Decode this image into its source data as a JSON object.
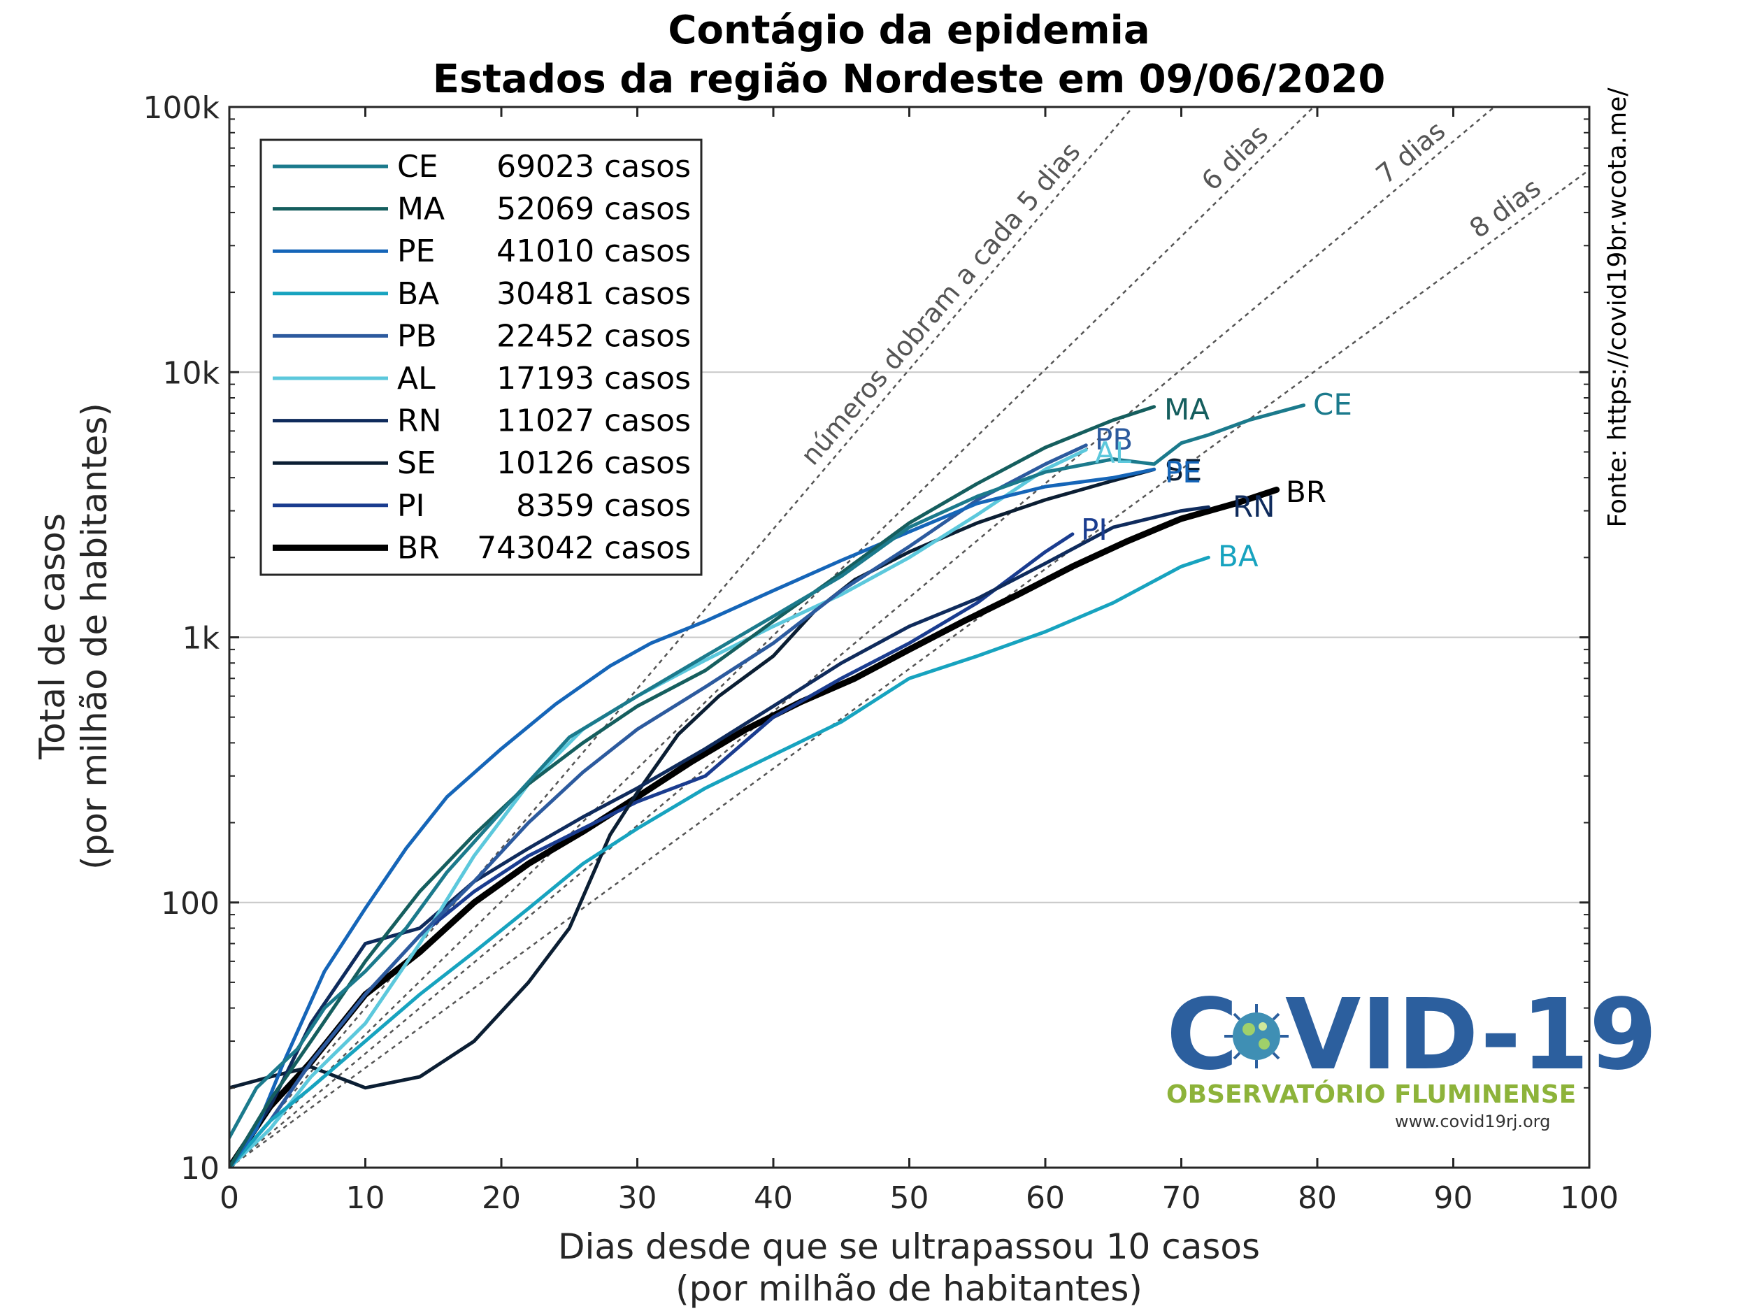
{
  "chart_data": {
    "type": "line",
    "title_line1": "Contágio da epidemia",
    "title_line2": "Estados da região Nordeste em 09/06/2020",
    "xlabel_line1": "Dias desde que se ultrapassou 10 casos",
    "xlabel_line2": "(por milhão de habitantes)",
    "ylabel_line1": "Total de casos",
    "ylabel_line2": "(por milhão de habitantes)",
    "xlim": [
      0,
      100
    ],
    "ylim": [
      10,
      100000
    ],
    "yscale": "log",
    "x_ticks": [
      0,
      10,
      20,
      30,
      40,
      50,
      60,
      70,
      80,
      90,
      100
    ],
    "x_tick_labels": [
      "0",
      "10",
      "20",
      "30",
      "40",
      "50",
      "60",
      "70",
      "80",
      "90",
      "100"
    ],
    "y_ticks": [
      10,
      100,
      1000,
      10000,
      100000
    ],
    "y_tick_labels": [
      "10",
      "100",
      "1k",
      "10k",
      "100k"
    ],
    "grid": "horizontal-major",
    "legend_position": "top-left",
    "source_text": "Fonte: https://covid19br.wcota.me/",
    "doubling_lines": [
      {
        "days": 5,
        "label": "números dobram a cada 5 dias"
      },
      {
        "days": 6,
        "label": "6 dias"
      },
      {
        "days": 7,
        "label": "7 dias"
      },
      {
        "days": 8,
        "label": "8 dias"
      }
    ],
    "series": [
      {
        "name": "CE",
        "cases": "69023 casos",
        "color": "#1b7a8c",
        "x": [
          0,
          2,
          5,
          7,
          10,
          13,
          16,
          20,
          25,
          30,
          35,
          40,
          45,
          50,
          55,
          60,
          65,
          68,
          70,
          72,
          75,
          79
        ],
        "y": [
          13,
          20,
          28,
          40,
          55,
          80,
          130,
          220,
          420,
          600,
          850,
          1200,
          1700,
          2600,
          3400,
          4200,
          4700,
          4500,
          5400,
          5800,
          6600,
          7500
        ]
      },
      {
        "name": "MA",
        "cases": "52069 casos",
        "color": "#155e5e",
        "x": [
          0,
          3,
          6,
          10,
          14,
          18,
          22,
          26,
          30,
          35,
          40,
          45,
          50,
          55,
          60,
          65,
          68
        ],
        "y": [
          10,
          18,
          30,
          60,
          110,
          180,
          280,
          400,
          550,
          750,
          1150,
          1750,
          2700,
          3800,
          5200,
          6600,
          7400
        ]
      },
      {
        "name": "PE",
        "cases": "41010 casos",
        "color": "#1565b8",
        "x": [
          0,
          2,
          4,
          7,
          10,
          13,
          16,
          20,
          24,
          28,
          31,
          35,
          40,
          45,
          50,
          55,
          60,
          65,
          68
        ],
        "y": [
          10,
          14,
          25,
          55,
          95,
          160,
          250,
          380,
          560,
          780,
          950,
          1150,
          1500,
          1950,
          2500,
          3200,
          3700,
          4000,
          4300
        ]
      },
      {
        "name": "BA",
        "cases": "30481 casos",
        "color": "#17a3bf",
        "x": [
          0,
          3,
          6,
          10,
          14,
          18,
          22,
          26,
          30,
          35,
          40,
          45,
          50,
          55,
          60,
          65,
          70,
          72
        ],
        "y": [
          10,
          15,
          20,
          30,
          45,
          65,
          95,
          140,
          190,
          270,
          360,
          480,
          700,
          850,
          1050,
          1350,
          1850,
          2000
        ]
      },
      {
        "name": "PB",
        "cases": "22452 casos",
        "color": "#2c5a9e",
        "x": [
          0,
          3,
          6,
          10,
          14,
          18,
          22,
          26,
          30,
          35,
          40,
          45,
          50,
          55,
          60,
          63
        ],
        "y": [
          10,
          15,
          25,
          45,
          75,
          120,
          200,
          310,
          450,
          650,
          950,
          1500,
          2200,
          3300,
          4500,
          5300
        ]
      },
      {
        "name": "AL",
        "cases": "17193 casos",
        "color": "#5cc8dc",
        "x": [
          0,
          3,
          6,
          10,
          14,
          18,
          22,
          26,
          30,
          35,
          40,
          45,
          50,
          55,
          60,
          63
        ],
        "y": [
          10,
          14,
          22,
          35,
          70,
          150,
          280,
          450,
          600,
          820,
          1100,
          1450,
          2000,
          2900,
          4300,
          5100
        ]
      },
      {
        "name": "RN",
        "cases": "11027 casos",
        "color": "#0f2b5c",
        "x": [
          0,
          3,
          6,
          10,
          14,
          18,
          22,
          26,
          30,
          35,
          40,
          45,
          50,
          55,
          60,
          65,
          70,
          72
        ],
        "y": [
          10,
          17,
          35,
          70,
          80,
          120,
          160,
          210,
          270,
          380,
          550,
          800,
          1100,
          1400,
          1900,
          2600,
          3000,
          3100
        ]
      },
      {
        "name": "SE",
        "cases": "10126 casos",
        "color": "#0b1e33",
        "x": [
          0,
          3,
          6,
          10,
          14,
          18,
          22,
          25,
          28,
          30,
          33,
          36,
          40,
          43,
          46,
          50,
          55,
          60,
          65,
          68
        ],
        "y": [
          20,
          22,
          24,
          20,
          22,
          30,
          50,
          80,
          180,
          260,
          430,
          600,
          850,
          1250,
          1650,
          2100,
          2700,
          3300,
          3900,
          4300
        ]
      },
      {
        "name": "PI",
        "cases": "8359 casos",
        "color": "#1a3c8f",
        "x": [
          0,
          3,
          6,
          10,
          14,
          18,
          22,
          26,
          30,
          35,
          40,
          45,
          50,
          55,
          60,
          62
        ],
        "y": [
          10,
          15,
          25,
          45,
          75,
          110,
          150,
          190,
          240,
          300,
          500,
          700,
          950,
          1350,
          2100,
          2450
        ]
      },
      {
        "name": "BR",
        "cases": "743042 casos",
        "color": "#000000",
        "width": "thick",
        "x": [
          0,
          3,
          6,
          10,
          14,
          18,
          22,
          26,
          30,
          34,
          38,
          42,
          46,
          50,
          54,
          58,
          62,
          66,
          70,
          74,
          77
        ],
        "y": [
          10,
          17,
          25,
          45,
          65,
          100,
          140,
          185,
          250,
          340,
          450,
          570,
          700,
          900,
          1150,
          1450,
          1850,
          2300,
          2800,
          3200,
          3600
        ]
      }
    ],
    "end_labels": [
      {
        "text": "CE",
        "color": "#1b7a8c"
      },
      {
        "text": "MA",
        "color": "#155e5e"
      },
      {
        "text": "PB",
        "color": "#2c5a9e"
      },
      {
        "text": "AL",
        "color": "#5cc8dc"
      },
      {
        "text": "SE",
        "color": "#0b1e33"
      },
      {
        "text": "PE",
        "color": "#1565b8"
      },
      {
        "text": "BR",
        "color": "#000000"
      },
      {
        "text": "RN",
        "color": "#0f2b5c"
      },
      {
        "text": "PI",
        "color": "#1a3c8f"
      },
      {
        "text": "BA",
        "color": "#17a3bf"
      }
    ]
  },
  "logo": {
    "main_left": "C",
    "main_right": "VID-19",
    "subtitle": "OBSERVATÓRIO FLUMINENSE",
    "url": "www.covid19rj.org",
    "color_main": "#2c5f9e",
    "color_sub": "#8db33a"
  }
}
